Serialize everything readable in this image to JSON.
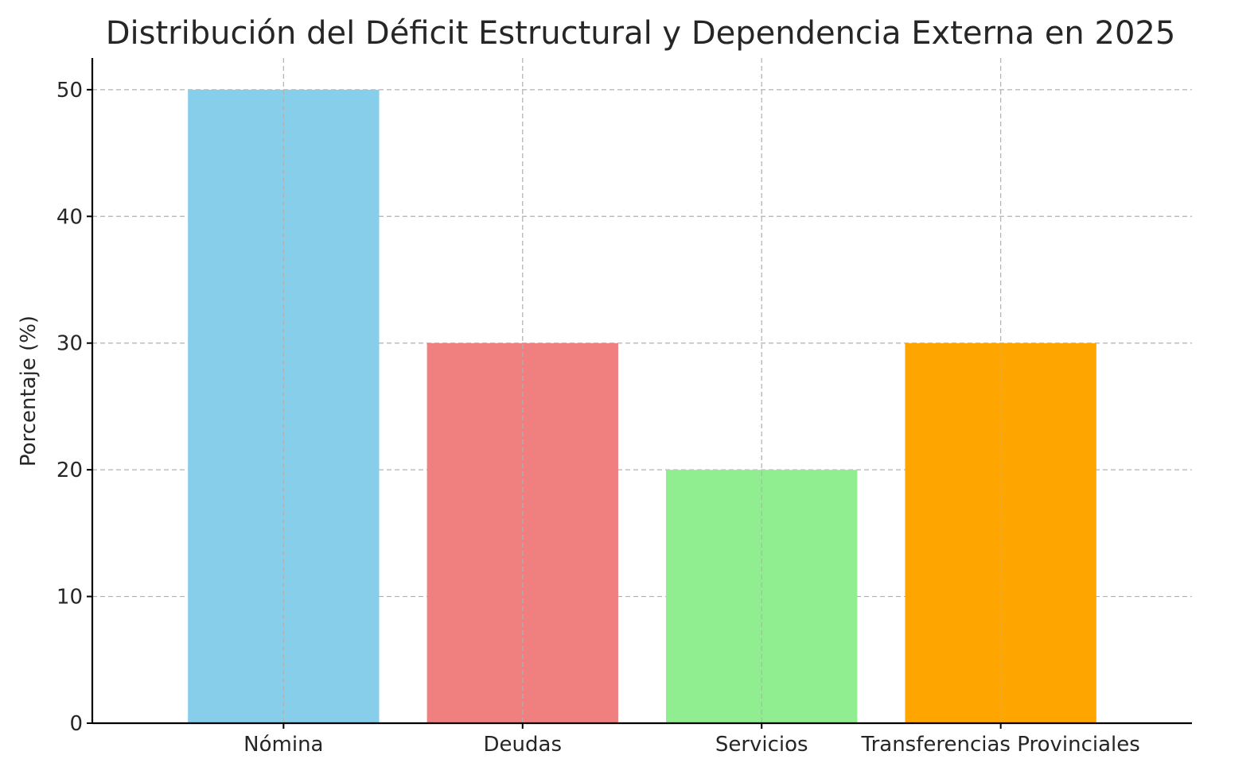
{
  "chart_data": {
    "type": "bar",
    "title": "Distribución del Déficit Estructural y Dependencia Externa en 2025",
    "xlabel": "",
    "ylabel": "Porcentaje (%)",
    "categories": [
      "Nómina",
      "Deudas",
      "Servicios",
      "Transferencias Provinciales"
    ],
    "values": [
      50,
      30,
      20,
      30
    ],
    "colors": [
      "#87ceeb",
      "#f08080",
      "#90ee90",
      "#ffa500"
    ],
    "ylim": [
      0,
      52.5
    ],
    "yticks": [
      0,
      10,
      20,
      30,
      40,
      50
    ],
    "grid": true
  }
}
